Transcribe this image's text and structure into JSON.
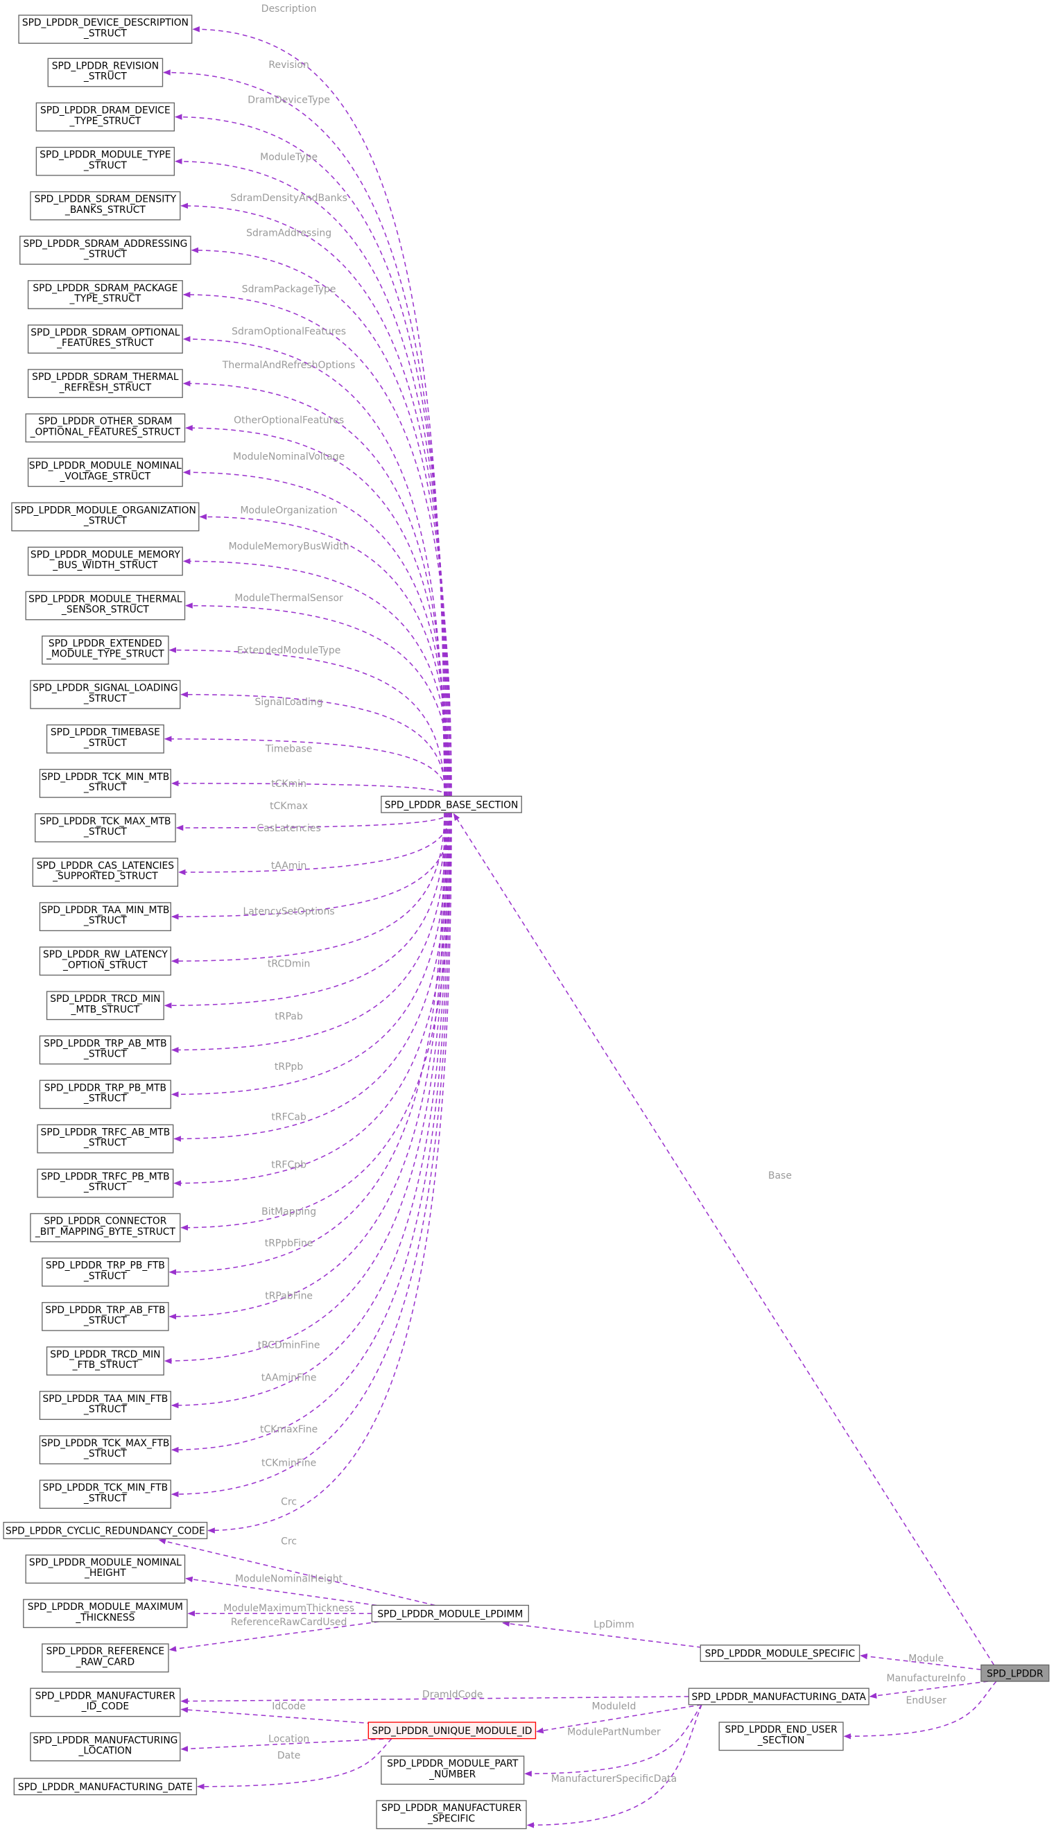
{
  "colors": {
    "edge": "#9a32cd",
    "edge_label": "#9a9a9a",
    "node_border": "#666666",
    "root_fill": "#999999",
    "highlight_border": "#ff0000"
  },
  "nodes": {
    "desc": [
      "SPD_LPDDR_DEVICE_DESCRIPTION",
      "_STRUCT"
    ],
    "rev": [
      "SPD_LPDDR_REVISION",
      "_STRUCT"
    ],
    "dram": [
      "SPD_LPDDR_DRAM_DEVICE",
      "_TYPE_STRUCT"
    ],
    "modtype": [
      "SPD_LPDDR_MODULE_TYPE",
      "_STRUCT"
    ],
    "density": [
      "SPD_LPDDR_SDRAM_DENSITY",
      "_BANKS_STRUCT"
    ],
    "addr": [
      "SPD_LPDDR_SDRAM_ADDRESSING",
      "_STRUCT"
    ],
    "pkg": [
      "SPD_LPDDR_SDRAM_PACKAGE",
      "_TYPE_STRUCT"
    ],
    "optf": [
      "SPD_LPDDR_SDRAM_OPTIONAL",
      "_FEATURES_STRUCT"
    ],
    "therm": [
      "SPD_LPDDR_SDRAM_THERMAL",
      "_REFRESH_STRUCT"
    ],
    "other": [
      "SPD_LPDDR_OTHER_SDRAM",
      "_OPTIONAL_FEATURES_STRUCT"
    ],
    "volt": [
      "SPD_LPDDR_MODULE_NOMINAL",
      "_VOLTAGE_STRUCT"
    ],
    "org": [
      "SPD_LPDDR_MODULE_ORGANIZATION",
      "_STRUCT"
    ],
    "bus": [
      "SPD_LPDDR_MODULE_MEMORY",
      "_BUS_WIDTH_STRUCT"
    ],
    "tsens": [
      "SPD_LPDDR_MODULE_THERMAL",
      "_SENSOR_STRUCT"
    ],
    "ext": [
      "SPD_LPDDR_EXTENDED",
      "_MODULE_TYPE_STRUCT"
    ],
    "sig": [
      "SPD_LPDDR_SIGNAL_LOADING",
      "_STRUCT"
    ],
    "tb": [
      "SPD_LPDDR_TIMEBASE",
      "_STRUCT"
    ],
    "tckmin": [
      "SPD_LPDDR_TCK_MIN_MTB",
      "_STRUCT"
    ],
    "tckmax": [
      "SPD_LPDDR_TCK_MAX_MTB",
      "_STRUCT"
    ],
    "cas": [
      "SPD_LPDDR_CAS_LATENCIES",
      "_SUPPORTED_STRUCT"
    ],
    "taa": [
      "SPD_LPDDR_TAA_MIN_MTB",
      "_STRUCT"
    ],
    "rw": [
      "SPD_LPDDR_RW_LATENCY",
      "_OPTION_STRUCT"
    ],
    "trcd": [
      "SPD_LPDDR_TRCD_MIN",
      "_MTB_STRUCT"
    ],
    "trpab": [
      "SPD_LPDDR_TRP_AB_MTB",
      "_STRUCT"
    ],
    "trppb": [
      "SPD_LPDDR_TRP_PB_MTB",
      "_STRUCT"
    ],
    "trfcab": [
      "SPD_LPDDR_TRFC_AB_MTB",
      "_STRUCT"
    ],
    "trfcpb": [
      "SPD_LPDDR_TRFC_PB_MTB",
      "_STRUCT"
    ],
    "conn": [
      "SPD_LPDDR_CONNECTOR",
      "_BIT_MAPPING_BYTE_STRUCT"
    ],
    "trppbf": [
      "SPD_LPDDR_TRP_PB_FTB",
      "_STRUCT"
    ],
    "trpabf": [
      "SPD_LPDDR_TRP_AB_FTB",
      "_STRUCT"
    ],
    "trcdf": [
      "SPD_LPDDR_TRCD_MIN",
      "_FTB_STRUCT"
    ],
    "taaf": [
      "SPD_LPDDR_TAA_MIN_FTB",
      "_STRUCT"
    ],
    "tckmaxf": [
      "SPD_LPDDR_TCK_MAX_FTB",
      "_STRUCT"
    ],
    "tckminf": [
      "SPD_LPDDR_TCK_MIN_FTB",
      "_STRUCT"
    ],
    "crc": [
      "SPD_LPDDR_CYCLIC_REDUNDANCY_CODE"
    ],
    "height": [
      "SPD_LPDDR_MODULE_NOMINAL",
      "_HEIGHT"
    ],
    "thick": [
      "SPD_LPDDR_MODULE_MAXIMUM",
      "_THICKNESS"
    ],
    "raw": [
      "SPD_LPDDR_REFERENCE",
      "_RAW_CARD"
    ],
    "idcode": [
      "SPD_LPDDR_MANUFACTURER",
      "_ID_CODE"
    ],
    "loc": [
      "SPD_LPDDR_MANUFACTURING",
      "_LOCATION"
    ],
    "date": [
      "SPD_LPDDR_MANUFACTURING_DATE"
    ],
    "base": [
      "SPD_LPDDR_BASE_SECTION"
    ],
    "lpdimm": [
      "SPD_LPDDR_MODULE_LPDIMM"
    ],
    "modspec": [
      "SPD_LPDDR_MODULE_SPECIFIC"
    ],
    "root": [
      "SPD_LPDDR"
    ],
    "mfg": [
      "SPD_LPDDR_MANUFACTURING_DATA"
    ],
    "enduser": [
      "SPD_LPDDR_END_USER",
      "_SECTION"
    ],
    "uid": [
      "SPD_LPDDR_UNIQUE_MODULE_ID"
    ],
    "part": [
      "SPD_LPDDR_MODULE_PART",
      "_NUMBER"
    ],
    "mspec": [
      "SPD_LPDDR_MANUFACTURER",
      "_SPECIFIC"
    ]
  },
  "edges": [
    {
      "from": "base",
      "to": "desc",
      "label": "Description"
    },
    {
      "from": "base",
      "to": "rev",
      "label": "Revision"
    },
    {
      "from": "base",
      "to": "dram",
      "label": "DramDeviceType"
    },
    {
      "from": "base",
      "to": "modtype",
      "label": "ModuleType"
    },
    {
      "from": "base",
      "to": "density",
      "label": "SdramDensityAndBanks"
    },
    {
      "from": "base",
      "to": "addr",
      "label": "SdramAddressing"
    },
    {
      "from": "base",
      "to": "pkg",
      "label": "SdramPackageType"
    },
    {
      "from": "base",
      "to": "optf",
      "label": "SdramOptionalFeatures"
    },
    {
      "from": "base",
      "to": "therm",
      "label": "ThermalAndRefreshOptions"
    },
    {
      "from": "base",
      "to": "other",
      "label": "OtherOptionalFeatures"
    },
    {
      "from": "base",
      "to": "volt",
      "label": "ModuleNominalVoltage"
    },
    {
      "from": "base",
      "to": "org",
      "label": "ModuleOrganization"
    },
    {
      "from": "base",
      "to": "bus",
      "label": "ModuleMemoryBusWidth"
    },
    {
      "from": "base",
      "to": "tsens",
      "label": "ModuleThermalSensor"
    },
    {
      "from": "base",
      "to": "ext",
      "label": "ExtendedModuleType"
    },
    {
      "from": "base",
      "to": "sig",
      "label": "SignalLoading"
    },
    {
      "from": "base",
      "to": "tb",
      "label": "Timebase"
    },
    {
      "from": "base",
      "to": "tckmin",
      "label": "tCKmin"
    },
    {
      "from": "base",
      "to": "tckmax",
      "label": "tCKmax"
    },
    {
      "from": "base",
      "to": "cas",
      "label": "CasLatencies"
    },
    {
      "from": "base",
      "to": "taa",
      "label": "tAAmin"
    },
    {
      "from": "base",
      "to": "rw",
      "label": "LatencySetOptions"
    },
    {
      "from": "base",
      "to": "trcd",
      "label": "tRCDmin"
    },
    {
      "from": "base",
      "to": "trpab",
      "label": "tRPab"
    },
    {
      "from": "base",
      "to": "trppb",
      "label": "tRPpb"
    },
    {
      "from": "base",
      "to": "trfcab",
      "label": "tRFCab"
    },
    {
      "from": "base",
      "to": "trfcpb",
      "label": "tRFCpb"
    },
    {
      "from": "base",
      "to": "conn",
      "label": "BitMapping"
    },
    {
      "from": "base",
      "to": "trppbf",
      "label": "tRPpbFine"
    },
    {
      "from": "base",
      "to": "trpabf",
      "label": "tRPabFine"
    },
    {
      "from": "base",
      "to": "trcdf",
      "label": "tRCDminFine"
    },
    {
      "from": "base",
      "to": "taaf",
      "label": "tAAminFine"
    },
    {
      "from": "base",
      "to": "tckmaxf",
      "label": "tCKmaxFine"
    },
    {
      "from": "base",
      "to": "tckminf",
      "label": "tCKminFine"
    },
    {
      "from": "base",
      "to": "crc",
      "label": "Crc"
    },
    {
      "from": "lpdimm",
      "to": "crc",
      "label": "Crc"
    },
    {
      "from": "lpdimm",
      "to": "height",
      "label": "ModuleNominalHeight"
    },
    {
      "from": "lpdimm",
      "to": "thick",
      "label": "ModuleMaximumThickness"
    },
    {
      "from": "lpdimm",
      "to": "raw",
      "label": "ReferenceRawCardUsed"
    },
    {
      "from": "modspec",
      "to": "lpdimm",
      "label": "LpDimm"
    },
    {
      "from": "root",
      "to": "base",
      "label": "Base"
    },
    {
      "from": "root",
      "to": "modspec",
      "label": "Module"
    },
    {
      "from": "root",
      "to": "mfg",
      "label": "ManufactureInfo"
    },
    {
      "from": "root",
      "to": "enduser",
      "label": "EndUser"
    },
    {
      "from": "mfg",
      "to": "idcode",
      "label": "DramIdCode"
    },
    {
      "from": "mfg",
      "to": "uid",
      "label": "ModuleId"
    },
    {
      "from": "mfg",
      "to": "part",
      "label": "ModulePartNumber"
    },
    {
      "from": "mfg",
      "to": "mspec",
      "label": "ManufacturerSpecificData"
    },
    {
      "from": "uid",
      "to": "idcode",
      "label": "IdCode"
    },
    {
      "from": "uid",
      "to": "loc",
      "label": "Location"
    },
    {
      "from": "uid",
      "to": "date",
      "label": "Date"
    }
  ]
}
